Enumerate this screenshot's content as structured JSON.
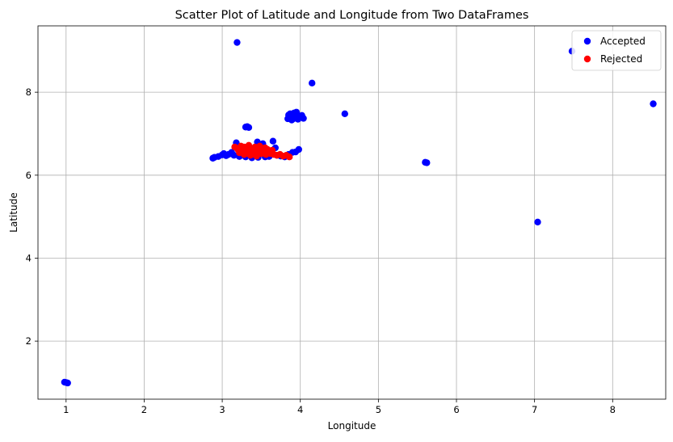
{
  "chart_data": {
    "type": "scatter",
    "title": "Scatter Plot of Latitude and Longitude from Two DataFrames",
    "xlabel": "Longitude",
    "ylabel": "Latitude",
    "xlim": [
      0.64,
      8.68
    ],
    "ylim": [
      0.6,
      9.6
    ],
    "xticks": [
      1,
      2,
      3,
      4,
      5,
      6,
      7,
      8
    ],
    "yticks": [
      2,
      4,
      6,
      8
    ],
    "grid": true,
    "legend_position": "top-right",
    "series": [
      {
        "name": "Accepted",
        "color": "#0000ff",
        "points": [
          [
            1.0,
            1.0
          ],
          [
            0.98,
            1.01
          ],
          [
            1.02,
            0.99
          ],
          [
            3.19,
            9.2
          ],
          [
            4.15,
            8.22
          ],
          [
            7.48,
            8.99
          ],
          [
            8.52,
            7.72
          ],
          [
            4.57,
            7.48
          ],
          [
            5.6,
            6.31
          ],
          [
            5.62,
            6.3
          ],
          [
            7.04,
            4.87
          ],
          [
            3.3,
            7.16
          ],
          [
            3.34,
            7.15
          ],
          [
            3.32,
            7.17
          ],
          [
            3.84,
            7.36
          ],
          [
            3.86,
            7.42
          ],
          [
            3.88,
            7.38
          ],
          [
            3.9,
            7.45
          ],
          [
            3.92,
            7.5
          ],
          [
            3.94,
            7.4
          ],
          [
            3.96,
            7.46
          ],
          [
            3.91,
            7.36
          ],
          [
            3.87,
            7.48
          ],
          [
            3.98,
            7.38
          ],
          [
            4.0,
            7.42
          ],
          [
            4.02,
            7.44
          ],
          [
            4.04,
            7.37
          ],
          [
            3.95,
            7.52
          ],
          [
            3.89,
            7.33
          ],
          [
            3.85,
            7.45
          ],
          [
            3.93,
            7.43
          ],
          [
            3.97,
            7.35
          ],
          [
            2.88,
            6.41
          ],
          [
            2.9,
            6.43
          ],
          [
            2.95,
            6.45
          ],
          [
            3.0,
            6.49
          ],
          [
            3.02,
            6.52
          ],
          [
            3.05,
            6.47
          ],
          [
            3.08,
            6.5
          ],
          [
            3.12,
            6.55
          ],
          [
            3.15,
            6.48
          ],
          [
            3.18,
            6.78
          ],
          [
            3.45,
            6.8
          ],
          [
            3.52,
            6.76
          ],
          [
            3.65,
            6.82
          ],
          [
            3.68,
            6.66
          ],
          [
            3.6,
            6.45
          ],
          [
            3.7,
            6.48
          ],
          [
            3.75,
            6.46
          ],
          [
            3.8,
            6.44
          ],
          [
            3.85,
            6.5
          ],
          [
            3.9,
            6.55
          ],
          [
            3.94,
            6.56
          ],
          [
            3.98,
            6.62
          ],
          [
            3.22,
            6.45
          ],
          [
            3.3,
            6.44
          ],
          [
            3.38,
            6.42
          ],
          [
            3.46,
            6.43
          ],
          [
            3.55,
            6.44
          ]
        ]
      },
      {
        "name": "Rejected",
        "color": "#ff0000",
        "points": [
          [
            3.16,
            6.68
          ],
          [
            3.2,
            6.62
          ],
          [
            3.22,
            6.54
          ],
          [
            3.24,
            6.7
          ],
          [
            3.26,
            6.6
          ],
          [
            3.28,
            6.5
          ],
          [
            3.3,
            6.66
          ],
          [
            3.32,
            6.56
          ],
          [
            3.34,
            6.72
          ],
          [
            3.36,
            6.48
          ],
          [
            3.38,
            6.62
          ],
          [
            3.4,
            6.54
          ],
          [
            3.42,
            6.68
          ],
          [
            3.44,
            6.46
          ],
          [
            3.46,
            6.6
          ],
          [
            3.48,
            6.7
          ],
          [
            3.5,
            6.52
          ],
          [
            3.52,
            6.64
          ],
          [
            3.54,
            6.58
          ],
          [
            3.56,
            6.5
          ],
          [
            3.58,
            6.62
          ],
          [
            3.6,
            6.56
          ],
          [
            3.62,
            6.52
          ],
          [
            3.64,
            6.6
          ],
          [
            3.66,
            6.5
          ],
          [
            3.25,
            6.58
          ],
          [
            3.35,
            6.64
          ],
          [
            3.45,
            6.56
          ],
          [
            3.55,
            6.66
          ],
          [
            3.3,
            6.52
          ],
          [
            3.4,
            6.6
          ],
          [
            3.5,
            6.6
          ],
          [
            3.28,
            6.68
          ],
          [
            3.38,
            6.5
          ],
          [
            3.48,
            6.54
          ],
          [
            3.7,
            6.48
          ],
          [
            3.74,
            6.5
          ],
          [
            3.78,
            6.46
          ],
          [
            3.82,
            6.48
          ],
          [
            3.86,
            6.44
          ]
        ]
      }
    ]
  }
}
